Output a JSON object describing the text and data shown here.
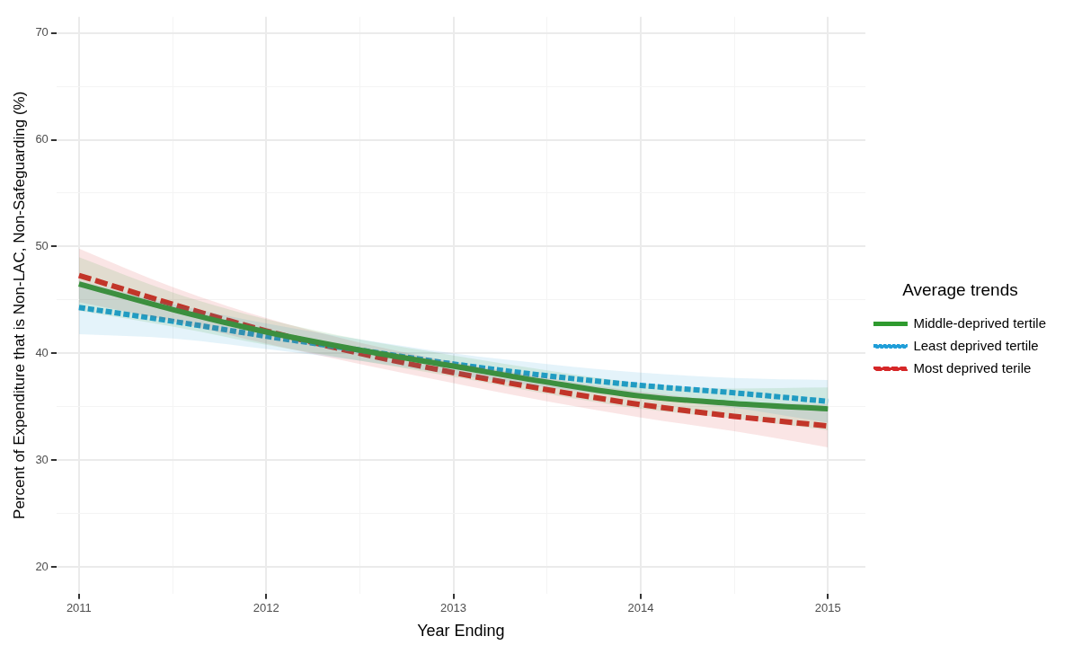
{
  "chart_data": {
    "type": "line",
    "xlabel": "Year Ending",
    "ylabel": "Percent of Expenditure that is Non-LAC, Non-Safeguarding (%)",
    "legend_title": "Average trends",
    "legend": "right",
    "grid": true,
    "marker": "none",
    "x": [
      2011,
      2011.5,
      2012,
      2012.5,
      2013,
      2013.5,
      2014,
      2014.5,
      2015
    ],
    "xlim": [
      2010.88,
      2015.2
    ],
    "xticks": [
      2011,
      {
        "value": 2011.5,
        "label": null
      },
      2012,
      {
        "value": 2012.5,
        "label": null
      },
      2013,
      {
        "value": 2013.5,
        "label": null
      },
      2014,
      {
        "value": 2014.5,
        "label": null
      },
      2015
    ],
    "ylim": [
      17.5,
      71.5
    ],
    "yticks": [
      20,
      {
        "value": 25,
        "label": null
      },
      30,
      {
        "value": 35,
        "label": null
      },
      40,
      {
        "value": 45,
        "label": null
      },
      50,
      {
        "value": 55,
        "label": null
      },
      60,
      {
        "value": 65,
        "label": null
      },
      70
    ],
    "series": [
      {
        "name": "Middle-deprived tertile",
        "color": "#2e9a2e",
        "line_style": "solid",
        "values": [
          46.5,
          44.1,
          42.0,
          40.3,
          38.8,
          37.3,
          36.0,
          35.3,
          34.8
        ],
        "lower": [
          44.0,
          42.5,
          40.8,
          39.3,
          37.8,
          36.2,
          34.8,
          33.9,
          32.8
        ],
        "upper": [
          49.0,
          45.7,
          43.2,
          41.3,
          39.8,
          38.4,
          37.2,
          36.7,
          36.8
        ]
      },
      {
        "name": "Least deprived tertile",
        "color": "#1f9ed8",
        "line_style": "dotted",
        "values": [
          44.3,
          43.0,
          41.6,
          40.3,
          39.0,
          37.9,
          37.0,
          36.3,
          35.5
        ],
        "lower": [
          41.8,
          41.4,
          40.4,
          39.3,
          38.0,
          36.8,
          35.8,
          34.9,
          33.5
        ],
        "upper": [
          46.8,
          44.6,
          42.8,
          41.3,
          40.0,
          39.0,
          38.2,
          37.7,
          37.5
        ]
      },
      {
        "name": "Most deprived terile",
        "color": "#d62728",
        "line_style": "dashed",
        "values": [
          47.3,
          44.6,
          42.1,
          40.0,
          38.2,
          36.6,
          35.2,
          34.1,
          33.2
        ],
        "lower": [
          44.8,
          43.0,
          40.9,
          39.0,
          37.2,
          35.5,
          34.0,
          32.7,
          31.2
        ],
        "upper": [
          49.8,
          46.2,
          43.3,
          41.0,
          39.2,
          37.7,
          36.4,
          35.5,
          35.2
        ]
      }
    ]
  }
}
